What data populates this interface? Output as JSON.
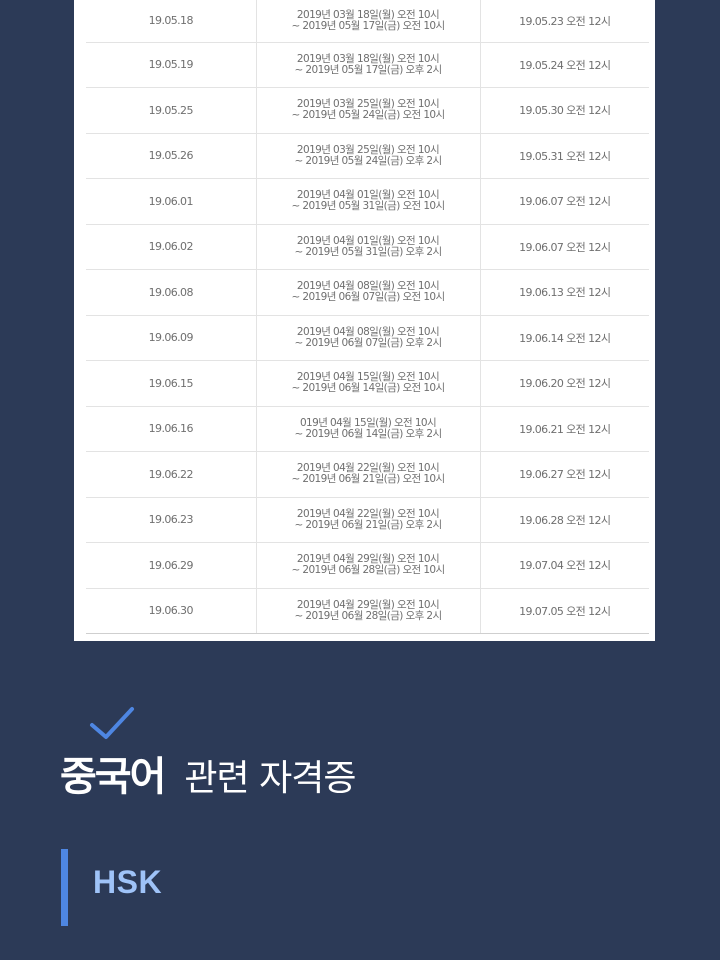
{
  "schedule": {
    "rows": [
      {
        "test_date": "19.05.18",
        "period_start": "2019년 03월 18일(월) 오전 10시",
        "period_end": "~ 2019년 05월 17일(금) 오전 10시",
        "result_date": "19.05.23 오전 12시"
      },
      {
        "test_date": "19.05.19",
        "period_start": "2019년 03월 18일(월) 오전 10시",
        "period_end": "~ 2019년 05월 17일(금) 오후 2시",
        "result_date": "19.05.24 오전 12시"
      },
      {
        "test_date": "19.05.25",
        "period_start": "2019년 03월 25일(월) 오전 10시",
        "period_end": "~ 2019년 05월 24일(금) 오전 10시",
        "result_date": "19.05.30 오전 12시"
      },
      {
        "test_date": "19.05.26",
        "period_start": "2019년 03월 25일(월) 오전 10시",
        "period_end": "~ 2019년 05월 24일(금) 오후 2시",
        "result_date": "19.05.31 오전 12시"
      },
      {
        "test_date": "19.06.01",
        "period_start": "2019년 04월 01일(월) 오전 10시",
        "period_end": "~ 2019년 05월 31일(금) 오전 10시",
        "result_date": "19.06.07 오전 12시"
      },
      {
        "test_date": "19.06.02",
        "period_start": "2019년 04월 01일(월) 오전 10시",
        "period_end": "~ 2019년 05월 31일(금) 오후 2시",
        "result_date": "19.06.07 오전 12시"
      },
      {
        "test_date": "19.06.08",
        "period_start": "2019년 04월 08일(월) 오전 10시",
        "period_end": "~ 2019년 06월 07일(금) 오전 10시",
        "result_date": "19.06.13 오전 12시"
      },
      {
        "test_date": "19.06.09",
        "period_start": "2019년 04월 08일(월) 오전 10시",
        "period_end": "~ 2019년 06월 07일(금) 오후 2시",
        "result_date": "19.06.14 오전 12시"
      },
      {
        "test_date": "19.06.15",
        "period_start": "2019년 04월 15일(월) 오전 10시",
        "period_end": "~ 2019년 06월 14일(금) 오전 10시",
        "result_date": "19.06.20 오전 12시"
      },
      {
        "test_date": "19.06.16",
        "period_start": "019년 04월 15일(월) 오전 10시",
        "period_end": "~ 2019년 06월 14일(금) 오후 2시",
        "result_date": "19.06.21 오전 12시"
      },
      {
        "test_date": "19.06.22",
        "period_start": "2019년 04월 22일(월) 오전 10시",
        "period_end": "~ 2019년 06월 21일(금) 오전 10시",
        "result_date": "19.06.27 오전 12시"
      },
      {
        "test_date": "19.06.23",
        "period_start": "2019년 04월 22일(월) 오전 10시",
        "period_end": "~ 2019년 06월 21일(금) 오후 2시",
        "result_date": "19.06.28 오전 12시"
      },
      {
        "test_date": "19.06.29",
        "period_start": "2019년 04월 29일(월) 오전 10시",
        "period_end": "~ 2019년 06월 28일(금) 오전 10시",
        "result_date": "19.07.04 오전 12시"
      },
      {
        "test_date": "19.06.30",
        "period_start": "2019년 04월 29일(월) 오전 10시",
        "period_end": "~ 2019년 06월 28일(금) 오후 2시",
        "result_date": "19.07.05 오전 12시"
      }
    ]
  },
  "section": {
    "title_bold": "중국어",
    "title_light": "관련 자격증",
    "check_icon": "check-icon",
    "check_color": "#4e86e2"
  },
  "subsection": {
    "label": "HSK",
    "accent_color": "#4e86e2"
  }
}
